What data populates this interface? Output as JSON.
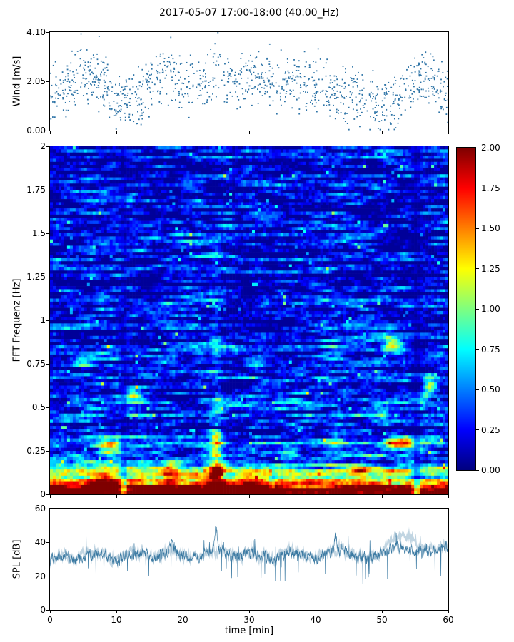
{
  "title": "2017-05-07 17:00-18:00 (40.00_Hz)",
  "colors": {
    "scatter": "#2e74a7",
    "line": "#33749e",
    "frame": "#000000"
  },
  "chart_data": [
    {
      "type": "scatter",
      "name": "wind_speed",
      "ylabel": "Wind [m/s]",
      "xlim": [
        0,
        60
      ],
      "ylim": [
        0,
        4.1
      ],
      "yticks": [
        0,
        2.05,
        4.1
      ],
      "ytick_labels": [
        "0.00",
        "2.05",
        "4.10"
      ],
      "n_points": 1150,
      "seed": 11,
      "jitter": 0.55,
      "envelope_t": [
        0,
        2,
        4,
        6,
        8,
        10,
        12,
        14,
        16,
        18,
        20,
        22,
        24,
        26,
        28,
        30,
        32,
        34,
        36,
        38,
        40,
        42,
        44,
        46,
        48,
        50,
        52,
        54,
        56,
        58,
        60
      ],
      "envelope": [
        1.8,
        1.5,
        2.2,
        2.4,
        2.0,
        1.2,
        1.1,
        1.3,
        2.3,
        2.5,
        2.0,
        1.7,
        2.3,
        2.4,
        2.0,
        2.2,
        2.1,
        1.9,
        2.0,
        1.9,
        1.7,
        1.6,
        1.5,
        1.5,
        1.2,
        1.1,
        1.3,
        1.8,
        2.3,
        1.9,
        1.4
      ],
      "peaks": [
        [
          25.3,
          4.08
        ],
        [
          7.4,
          3.92
        ],
        [
          18.2,
          3.88
        ],
        [
          33.1,
          3.6
        ]
      ]
    },
    {
      "type": "heatmap",
      "name": "fft_spectrogram",
      "ylabel": "FFT Frequenz [Hz]",
      "xlim": [
        0,
        60
      ],
      "ylim": [
        0,
        2
      ],
      "yticks": [
        0,
        0.25,
        0.5,
        0.75,
        1,
        1.25,
        1.5,
        1.75,
        2
      ],
      "ytick_labels": [
        "0",
        "0.25",
        "0.5",
        "0.75",
        "1",
        "1.25",
        "1.5",
        "1.75",
        "2"
      ],
      "clim": [
        0,
        2
      ],
      "colormap": "jet",
      "colorbar_ticks": [
        "0.00",
        "0.25",
        "0.50",
        "0.75",
        "1.00",
        "1.25",
        "1.50",
        "1.75",
        "2.00"
      ],
      "rows": 112,
      "cols": 140,
      "seed": 42,
      "base_level": 0.16,
      "base_decay": 0.3,
      "bottom_band": 1.9,
      "features": [
        [
          9,
          0.28,
          2.5,
          0.05,
          1.0
        ],
        [
          8.5,
          0.07,
          3,
          0.05,
          0.8
        ],
        [
          12,
          0.56,
          1.5,
          0.04,
          0.7
        ],
        [
          18,
          0.12,
          1.5,
          0.06,
          0.8
        ],
        [
          25,
          0.12,
          1.0,
          0.1,
          1.1
        ],
        [
          25,
          0.3,
          0.9,
          0.07,
          0.8
        ],
        [
          25,
          0.8,
          0.8,
          0.5,
          0.35
        ],
        [
          30.5,
          0.05,
          2,
          0.05,
          0.7
        ],
        [
          36,
          0.22,
          1.3,
          0.04,
          0.5
        ],
        [
          43,
          0.3,
          1.4,
          0.04,
          0.8
        ],
        [
          47,
          0.12,
          1.5,
          0.05,
          0.6
        ],
        [
          53,
          0.29,
          2.6,
          0.035,
          1.5
        ],
        [
          52,
          0.86,
          1.8,
          0.05,
          0.85
        ],
        [
          56,
          0.55,
          1.3,
          0.05,
          0.8
        ],
        [
          50,
          0.45,
          1.4,
          0.04,
          0.6
        ],
        [
          5,
          0.75,
          1.5,
          0.04,
          0.5
        ],
        [
          57.5,
          0.62,
          1.0,
          0.05,
          0.9
        ]
      ],
      "stripes": [
        [
          11,
          0.6,
          0.55
        ],
        [
          55.4,
          0.7,
          0.5
        ],
        [
          33.5,
          0.5,
          0.78
        ]
      ]
    },
    {
      "type": "line",
      "name": "spl",
      "ylabel": "SPL [dB]",
      "xlabel": "time [min]",
      "xlim": [
        0,
        60
      ],
      "ylim": [
        0,
        60
      ],
      "yticks": [
        0,
        20,
        40,
        60
      ],
      "ytick_labels": [
        "0",
        "20",
        "40",
        "60"
      ],
      "xticks": [
        0,
        10,
        20,
        30,
        40,
        50,
        60
      ],
      "xtick_labels": [
        "0",
        "10",
        "20",
        "30",
        "40",
        "50",
        "60"
      ],
      "seed": 7,
      "envelope_t": [
        0,
        2,
        4,
        6,
        8,
        10,
        12,
        14,
        16,
        18,
        20,
        22,
        24,
        26,
        28,
        30,
        32,
        34,
        36,
        38,
        40,
        42,
        44,
        46,
        48,
        50,
        52,
        54,
        56,
        58,
        60
      ],
      "envelope": [
        30,
        33,
        30,
        34,
        32,
        29,
        34,
        33,
        30,
        36,
        33,
        31,
        34,
        35,
        31,
        34,
        32,
        30,
        35,
        33,
        31,
        34,
        36,
        32,
        31,
        34,
        37,
        36,
        34,
        35,
        38
      ],
      "spikes": [
        [
          25,
          0.25,
          15
        ],
        [
          18.3,
          0.3,
          8
        ],
        [
          43,
          0.3,
          8
        ]
      ],
      "overlay_t": 53.5,
      "overlay_w": 2.5,
      "overlay_amp": 8
    }
  ]
}
